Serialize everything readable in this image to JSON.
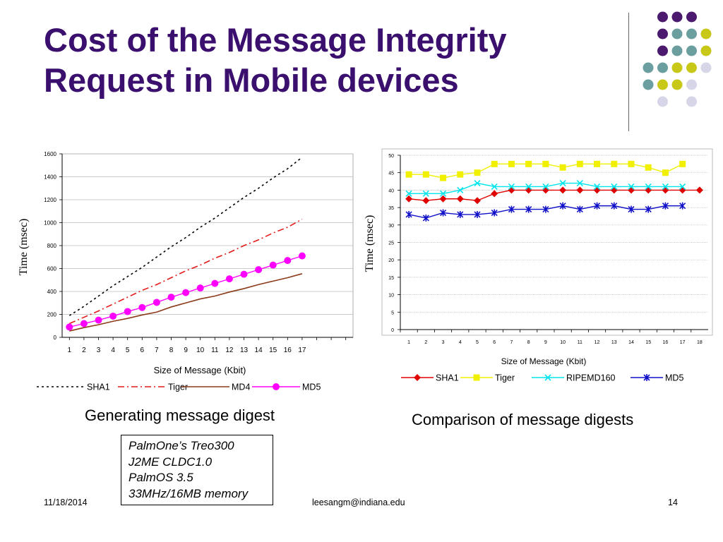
{
  "slide": {
    "title": "Cost of the Message Integrity Request in Mobile devices",
    "captions": {
      "left": "Generating message digest",
      "right": "Comparison of message digests"
    },
    "device_box": [
      "PalmOne’s Treo300",
      "J2ME CLDC1.0",
      "PalmOS 3.5",
      "33MHz/16MB memory"
    ],
    "footer": {
      "date": "11/18/2014",
      "email": "leesangm@indiana.edu",
      "page": "14"
    },
    "theme": {
      "title_color": "#3a0f6e",
      "dot_colors": [
        "#4b1a6e",
        "#6b9e9e",
        "#c8c818",
        "#d6d6e8"
      ]
    }
  },
  "chart_data": [
    {
      "type": "line",
      "title": "",
      "xlabel": "Size of Message (Kbit)",
      "ylabel": "Time (msec)",
      "x": [
        1,
        2,
        3,
        4,
        5,
        6,
        7,
        8,
        9,
        10,
        11,
        12,
        13,
        14,
        15,
        16,
        17
      ],
      "x_ticks": [
        "1",
        "2",
        "3",
        "4",
        "5",
        "6",
        "7",
        "8",
        "9",
        "10",
        "11",
        "12",
        "13",
        "14",
        "15",
        "16",
        "17"
      ],
      "y_ticks": [
        "0",
        "200",
        "400",
        "600",
        "800",
        "1000",
        "1200",
        "1400",
        "1600"
      ],
      "ylim": [
        0,
        1600
      ],
      "grid": "horizontal",
      "legend": "bottom",
      "series": [
        {
          "name": "SHA1",
          "color": "#000000",
          "dash": "3,4",
          "marker": "none",
          "values": [
            190,
            270,
            360,
            450,
            530,
            610,
            700,
            790,
            870,
            960,
            1040,
            1130,
            1220,
            1300,
            1390,
            1470,
            1570
          ]
        },
        {
          "name": "Tiger",
          "color": "#e41a1a",
          "dash": "9,4,2,4",
          "marker": "none",
          "values": [
            120,
            175,
            230,
            290,
            350,
            410,
            460,
            520,
            580,
            630,
            690,
            740,
            800,
            850,
            910,
            960,
            1030
          ]
        },
        {
          "name": "MD4",
          "color": "#8b3a1a",
          "dash": "",
          "marker": "none",
          "values": [
            55,
            85,
            110,
            140,
            165,
            195,
            220,
            265,
            300,
            335,
            360,
            395,
            425,
            460,
            490,
            520,
            555
          ]
        },
        {
          "name": "MD5",
          "color": "#ff00ff",
          "dash": "",
          "marker": "circle",
          "values": [
            90,
            120,
            150,
            185,
            225,
            260,
            305,
            350,
            390,
            430,
            470,
            510,
            550,
            590,
            630,
            670,
            710
          ]
        }
      ]
    },
    {
      "type": "line",
      "title": "",
      "xlabel": "Size of Message (Kbit)",
      "ylabel": "Time (msec)",
      "x": [
        1,
        2,
        3,
        4,
        5,
        6,
        7,
        8,
        9,
        10,
        11,
        12,
        13,
        14,
        15,
        16,
        17,
        18
      ],
      "x_ticks": [
        "1",
        "2",
        "3",
        "4",
        "5",
        "6",
        "7",
        "8",
        "9",
        "10",
        "11",
        "12",
        "13",
        "14",
        "15",
        "16",
        "17",
        "18"
      ],
      "y_ticks": [
        "0",
        "5",
        "10",
        "15",
        "20",
        "25",
        "30",
        "35",
        "40",
        "45",
        "50"
      ],
      "ylim": [
        0,
        50
      ],
      "grid": "horizontal",
      "legend": "bottom",
      "series": [
        {
          "name": "SHA1",
          "color": "#e00000",
          "marker": "diamond",
          "values": [
            37.5,
            37,
            37.5,
            37.5,
            37,
            39,
            40,
            40,
            40,
            40,
            40,
            40,
            40,
            40,
            40,
            40,
            40,
            40
          ]
        },
        {
          "name": "Tiger",
          "color": "#f0f000",
          "marker": "square",
          "values": [
            44.5,
            44.5,
            43.5,
            44.5,
            45,
            47.5,
            47.5,
            47.5,
            47.5,
            46.5,
            47.5,
            47.5,
            47.5,
            47.5,
            46.5,
            45,
            47.5,
            null
          ]
        },
        {
          "name": "RIPEMD160",
          "color": "#00e5ee",
          "marker": "x",
          "values": [
            39,
            39,
            39,
            40,
            42,
            41,
            41,
            41,
            41,
            42,
            42,
            41,
            41,
            41,
            41,
            41,
            41,
            null
          ]
        },
        {
          "name": "MD5",
          "color": "#1010c8",
          "marker": "star",
          "values": [
            33,
            32,
            33.5,
            33,
            33,
            33.5,
            34.5,
            34.5,
            34.5,
            35.5,
            34.5,
            35.5,
            35.5,
            34.5,
            34.5,
            35.5,
            35.5,
            null
          ]
        }
      ]
    }
  ]
}
